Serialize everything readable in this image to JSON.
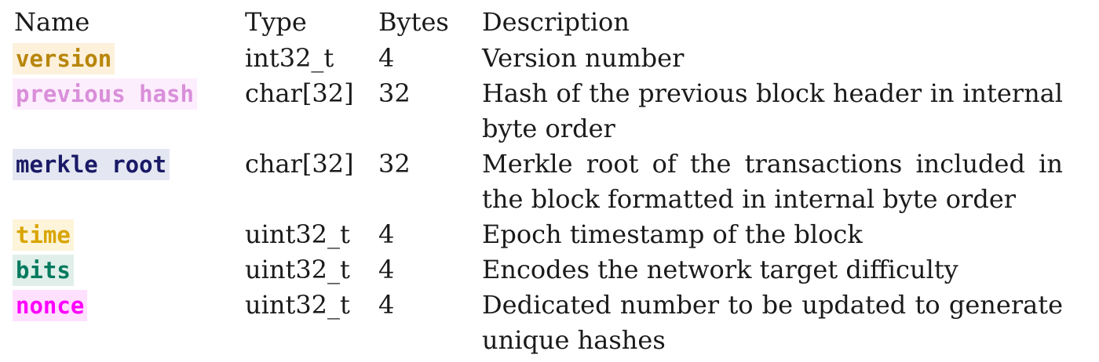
{
  "headers": {
    "name": "Name",
    "type": "Type",
    "bytes": "Bytes",
    "description": "Description"
  },
  "rows": [
    {
      "name": "version",
      "type": "int32_t",
      "bytes": "4",
      "description": "Version number",
      "color": "#b8860b",
      "bg": "#fdf1dc"
    },
    {
      "name": "previous hash",
      "type": "char[32]",
      "bytes": "32",
      "description": "Hash of the previous block header in internal byte order",
      "color": "#d98fd9",
      "bg": "#fdeefd"
    },
    {
      "name": "merkle root",
      "type": "char[32]",
      "bytes": "32",
      "description": "Merkle root of the transactions included in the block formatted in internal byte order",
      "color": "#1a1a66",
      "bg": "#e4e7f2"
    },
    {
      "name": "time",
      "type": "uint32_t",
      "bytes": "4",
      "description": "Epoch timestamp of the block",
      "color": "#d9a500",
      "bg": "#fdf4d9"
    },
    {
      "name": "bits",
      "type": "uint32_t",
      "bytes": "4",
      "description": "Encodes the network target difficulty",
      "color": "#007a5e",
      "bg": "#e0efe9"
    },
    {
      "name": "nonce",
      "type": "uint32_t",
      "bytes": "4",
      "description": "Dedicated number to be updated to generate unique hashes",
      "color": "#ff00ff",
      "bg": "#ffe0ff"
    }
  ]
}
